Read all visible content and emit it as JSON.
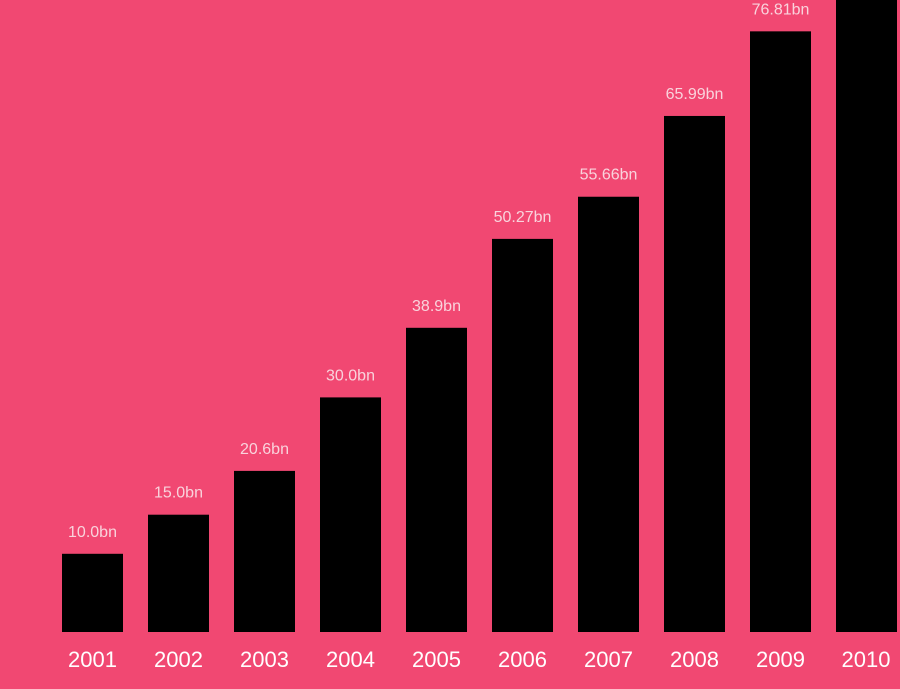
{
  "colors": {
    "background": "#f14872",
    "bar": "#000000",
    "data_label": "#f9d3dc",
    "tick_label": "#ffffff"
  },
  "chart_data": {
    "type": "bar",
    "title": "",
    "xlabel": "",
    "ylabel": "",
    "categories": [
      "2001",
      "2002",
      "2003",
      "2004",
      "2005",
      "2006",
      "2007",
      "2008",
      "2009",
      "2010"
    ],
    "values": [
      10.0,
      15.0,
      20.6,
      30.0,
      38.9,
      50.27,
      55.66,
      65.99,
      76.81,
      85.0
    ],
    "data_labels": [
      "10.0bn",
      "15.0bn",
      "20.6bn",
      "30.0bn",
      "38.9bn",
      "50.27bn",
      "55.66bn",
      "65.99bn",
      "76.81bn",
      ""
    ],
    "grid": false,
    "legend": "none"
  }
}
